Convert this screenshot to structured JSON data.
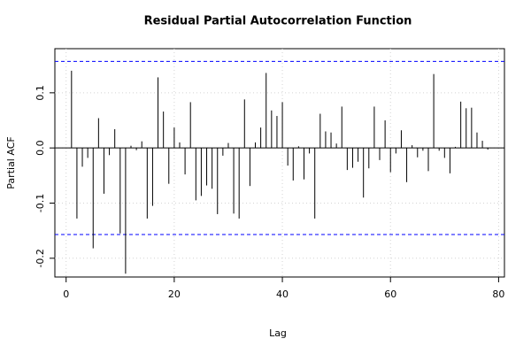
{
  "chart_data": {
    "type": "pacf",
    "title": "Residual Partial Autocorrelation Function",
    "xlabel": "Lag",
    "ylabel": "Partial ACF",
    "x": [
      1,
      2,
      3,
      4,
      5,
      6,
      7,
      8,
      9,
      10,
      11,
      12,
      13,
      14,
      15,
      16,
      17,
      18,
      19,
      20,
      21,
      22,
      23,
      24,
      25,
      26,
      27,
      28,
      29,
      30,
      31,
      32,
      33,
      34,
      35,
      36,
      37,
      38,
      39,
      40,
      41,
      42,
      43,
      44,
      45,
      46,
      47,
      48,
      49,
      50,
      51,
      52,
      53,
      54,
      55,
      56,
      57,
      58,
      59,
      60,
      61,
      62,
      63,
      64,
      65,
      66,
      67,
      68,
      69,
      70,
      71,
      72,
      73,
      74,
      75,
      76,
      77,
      78
    ],
    "values": [
      0.14,
      -0.128,
      -0.034,
      -0.018,
      -0.182,
      0.054,
      -0.083,
      -0.013,
      0.034,
      -0.155,
      -0.228,
      0.004,
      -0.004,
      0.012,
      -0.128,
      -0.105,
      0.128,
      0.066,
      -0.065,
      0.037,
      0.01,
      -0.048,
      0.083,
      -0.095,
      -0.087,
      -0.068,
      -0.074,
      -0.12,
      -0.014,
      0.009,
      -0.119,
      -0.128,
      0.088,
      -0.069,
      0.01,
      0.037,
      0.136,
      0.068,
      0.058,
      0.083,
      -0.032,
      -0.059,
      0.003,
      -0.057,
      -0.01,
      -0.128,
      0.062,
      0.03,
      0.028,
      0.008,
      0.075,
      -0.04,
      -0.036,
      -0.025,
      -0.09,
      -0.037,
      0.075,
      -0.022,
      0.05,
      -0.044,
      -0.01,
      0.032,
      -0.062,
      0.005,
      -0.017,
      -0.005,
      -0.042,
      0.134,
      -0.005,
      -0.018,
      -0.046,
      0.002,
      0.084,
      0.072,
      0.073,
      0.028,
      0.013,
      -0.003
    ],
    "color": "#000000",
    "conf_limits": [
      0.157,
      -0.157
    ],
    "conf_color": "#0000ff",
    "xlim": [
      -2.08,
      81.08
    ],
    "ylim": [
      -0.234,
      0.18
    ],
    "xticks": [
      0,
      20,
      40,
      60,
      80
    ],
    "yticks": [
      -0.2,
      -0.1,
      {
        "value": 0,
        "label": "0.0"
      },
      0.1
    ],
    "grid": true
  }
}
